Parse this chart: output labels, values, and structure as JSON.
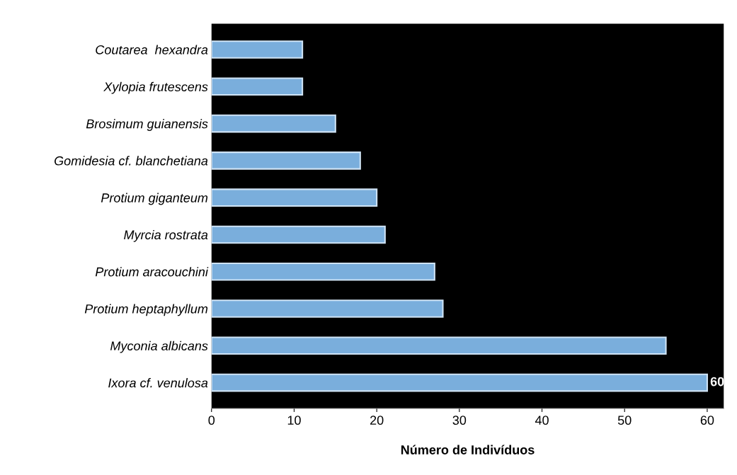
{
  "chart_data": {
    "type": "bar",
    "orientation": "horizontal",
    "xlabel": "Número de Indivíduos",
    "categories": [
      "Coutarea  hexandra",
      "Xylopia frutescens",
      "Brosimum guianensis",
      "Gomidesia cf. blanchetiana",
      "Protium giganteum",
      "Myrcia rostrata",
      "Protium aracouchini",
      "Protium heptaphyllum",
      "Myconia albicans",
      "Ixora cf. venulosa"
    ],
    "values": [
      11,
      11,
      15,
      18,
      20,
      21,
      27,
      28,
      55,
      60
    ],
    "value_labels": [
      null,
      null,
      null,
      null,
      null,
      null,
      null,
      null,
      null,
      "60"
    ],
    "color": "#7aaedc",
    "xlim": [
      0,
      62
    ],
    "xticks": [
      0,
      10,
      20,
      30,
      40,
      50,
      60
    ],
    "grid": false,
    "legend": false
  }
}
